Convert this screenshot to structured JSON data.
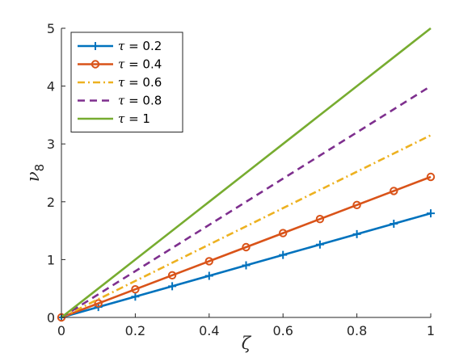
{
  "chart_data": {
    "type": "line",
    "xlabel": "ζ",
    "ylabel_base": "ν",
    "ylabel_sub": "8",
    "xlim": [
      0,
      1
    ],
    "ylim": [
      0,
      5
    ],
    "xticks": [
      0,
      0.2,
      0.4,
      0.6,
      0.8,
      1
    ],
    "xtick_labels": [
      "0",
      "0.2",
      "0.4",
      "0.6",
      "0.8",
      "1"
    ],
    "yticks": [
      0,
      1,
      2,
      3,
      4,
      5
    ],
    "ytick_labels": [
      "0",
      "1",
      "2",
      "3",
      "4",
      "5"
    ],
    "grid": false,
    "legend_position": "top-left",
    "x": [
      0,
      0.1,
      0.2,
      0.3,
      0.4,
      0.5,
      0.6,
      0.7,
      0.8,
      0.9,
      1
    ],
    "series": [
      {
        "name": "τ = 0.2",
        "symbol": "τ",
        "eq": " = 0.2",
        "color": "#0072BD",
        "dash": "solid",
        "marker": "plus",
        "values": [
          0,
          0.18,
          0.36,
          0.54,
          0.72,
          0.9,
          1.08,
          1.26,
          1.44,
          1.62,
          1.8
        ]
      },
      {
        "name": "τ = 0.4",
        "symbol": "τ",
        "eq": " = 0.4",
        "color": "#D95319",
        "dash": "solid",
        "marker": "circle",
        "values": [
          0,
          0.243,
          0.486,
          0.729,
          0.972,
          1.215,
          1.458,
          1.701,
          1.944,
          2.187,
          2.43
        ]
      },
      {
        "name": "τ = 0.6",
        "symbol": "τ",
        "eq": " = 0.6",
        "color": "#EDB120",
        "dash": "dashdot",
        "marker": "none",
        "values": [
          0,
          0.315,
          0.63,
          0.945,
          1.26,
          1.575,
          1.89,
          2.205,
          2.52,
          2.835,
          3.15
        ]
      },
      {
        "name": "τ = 0.8",
        "symbol": "τ",
        "eq": " = 0.8",
        "color": "#7E2F8E",
        "dash": "dashed",
        "marker": "none",
        "values": [
          0,
          0.4,
          0.8,
          1.2,
          1.6,
          2.0,
          2.4,
          2.8,
          3.2,
          3.6,
          4.0
        ]
      },
      {
        "name": "τ = 1",
        "symbol": "τ",
        "eq": " = 1",
        "color": "#77AC30",
        "dash": "solid",
        "marker": "none",
        "values": [
          0,
          0.5,
          1.0,
          1.5,
          2.0,
          2.5,
          3.0,
          3.5,
          4.0,
          4.5,
          5.0
        ]
      }
    ]
  }
}
